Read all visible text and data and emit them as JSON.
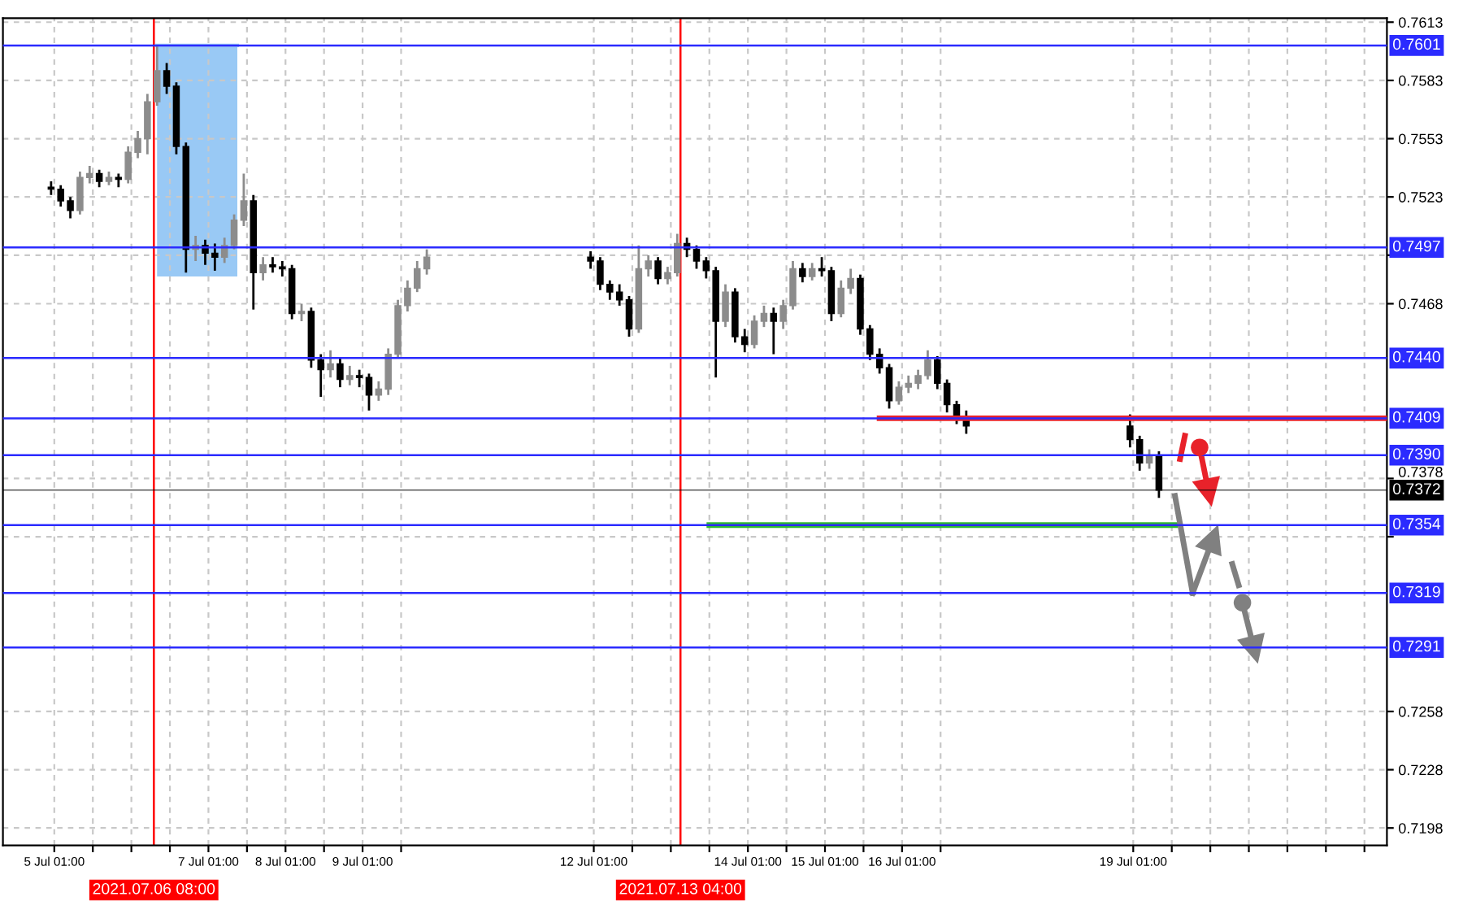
{
  "chart_data": {
    "type": "candlestick",
    "x": [
      "2021-07-05T00:00",
      "2021-07-05T03:00",
      "2021-07-05T06:00",
      "2021-07-05T09:00",
      "2021-07-05T12:00",
      "2021-07-05T15:00",
      "2021-07-05T18:00",
      "2021-07-05T21:00",
      "2021-07-06T00:00",
      "2021-07-06T03:00",
      "2021-07-06T06:00",
      "2021-07-06T09:00",
      "2021-07-06T12:00",
      "2021-07-06T15:00",
      "2021-07-06T18:00",
      "2021-07-06T21:00",
      "2021-07-07T00:00",
      "2021-07-07T03:00",
      "2021-07-07T06:00",
      "2021-07-07T09:00",
      "2021-07-07T12:00",
      "2021-07-07T15:00",
      "2021-07-07T18:00",
      "2021-07-07T21:00",
      "2021-07-08T00:00",
      "2021-07-08T03:00",
      "2021-07-08T06:00",
      "2021-07-08T09:00",
      "2021-07-08T12:00",
      "2021-07-08T15:00",
      "2021-07-08T18:00",
      "2021-07-08T21:00",
      "2021-07-09T00:00",
      "2021-07-09T03:00",
      "2021-07-09T06:00",
      "2021-07-09T09:00",
      "2021-07-09T12:00",
      "2021-07-09T15:00",
      "2021-07-09T18:00",
      "2021-07-09T21:00",
      "2021-07-12T00:00",
      "2021-07-12T03:00",
      "2021-07-12T06:00",
      "2021-07-12T09:00",
      "2021-07-12T12:00",
      "2021-07-12T15:00",
      "2021-07-12T18:00",
      "2021-07-12T21:00",
      "2021-07-13T00:00",
      "2021-07-13T03:00",
      "2021-07-13T06:00",
      "2021-07-13T09:00",
      "2021-07-13T12:00",
      "2021-07-13T15:00",
      "2021-07-13T18:00",
      "2021-07-13T21:00",
      "2021-07-14T00:00",
      "2021-07-14T03:00",
      "2021-07-14T06:00",
      "2021-07-14T09:00",
      "2021-07-14T12:00",
      "2021-07-14T15:00",
      "2021-07-14T18:00",
      "2021-07-14T21:00",
      "2021-07-15T00:00",
      "2021-07-15T03:00",
      "2021-07-15T06:00",
      "2021-07-15T09:00",
      "2021-07-15T12:00",
      "2021-07-15T15:00",
      "2021-07-15T18:00",
      "2021-07-15T21:00",
      "2021-07-16T00:00",
      "2021-07-16T03:00",
      "2021-07-16T06:00",
      "2021-07-16T09:00",
      "2021-07-16T12:00",
      "2021-07-16T15:00",
      "2021-07-16T18:00",
      "2021-07-16T21:00",
      "2021-07-19T00:00",
      "2021-07-19T03:00",
      "2021-07-19T06:00",
      "2021-07-19T09:00"
    ],
    "ohlc": [
      [
        0.7528,
        0.7531,
        0.7524,
        0.7527
      ],
      [
        0.7527,
        0.7529,
        0.7518,
        0.7521
      ],
      [
        0.7521,
        0.7523,
        0.7512,
        0.7516
      ],
      [
        0.7516,
        0.7536,
        0.7514,
        0.7533
      ],
      [
        0.7533,
        0.7539,
        0.753,
        0.7535
      ],
      [
        0.7535,
        0.7537,
        0.7528,
        0.7531
      ],
      [
        0.7531,
        0.7536,
        0.7529,
        0.7533
      ],
      [
        0.7533,
        0.7535,
        0.7528,
        0.7532
      ],
      [
        0.7532,
        0.7549,
        0.753,
        0.7546
      ],
      [
        0.7546,
        0.7557,
        0.7543,
        0.7553
      ],
      [
        0.7553,
        0.7576,
        0.7545,
        0.7572
      ],
      [
        0.7572,
        0.7601,
        0.757,
        0.7588
      ],
      [
        0.7588,
        0.7592,
        0.7576,
        0.758
      ],
      [
        0.758,
        0.7582,
        0.7545,
        0.7549
      ],
      [
        0.7549,
        0.7551,
        0.7484,
        0.7496
      ],
      [
        0.7496,
        0.7503,
        0.749,
        0.7498
      ],
      [
        0.7498,
        0.7501,
        0.7488,
        0.7494
      ],
      [
        0.7494,
        0.7499,
        0.7485,
        0.7492
      ],
      [
        0.7492,
        0.7502,
        0.7489,
        0.7498
      ],
      [
        0.7498,
        0.7514,
        0.7496,
        0.7511
      ],
      [
        0.7511,
        0.7535,
        0.7508,
        0.7521
      ],
      [
        0.7521,
        0.7524,
        0.7465,
        0.7484
      ],
      [
        0.7484,
        0.7492,
        0.748,
        0.7488
      ],
      [
        0.7488,
        0.7492,
        0.7484,
        0.7487
      ],
      [
        0.7487,
        0.749,
        0.7482,
        0.7486
      ],
      [
        0.7486,
        0.7488,
        0.746,
        0.7463
      ],
      [
        0.7463,
        0.7468,
        0.7459,
        0.7464
      ],
      [
        0.7464,
        0.7466,
        0.7435,
        0.7439
      ],
      [
        0.7439,
        0.7442,
        0.742,
        0.7434
      ],
      [
        0.7434,
        0.7444,
        0.743,
        0.7437
      ],
      [
        0.7437,
        0.744,
        0.7425,
        0.7429
      ],
      [
        0.7429,
        0.7436,
        0.7426,
        0.7431
      ],
      [
        0.7431,
        0.7434,
        0.7425,
        0.743
      ],
      [
        0.743,
        0.7432,
        0.7413,
        0.7421
      ],
      [
        0.7421,
        0.7428,
        0.7418,
        0.7424
      ],
      [
        0.7424,
        0.7445,
        0.7421,
        0.7442
      ],
      [
        0.7442,
        0.747,
        0.744,
        0.7467
      ],
      [
        0.7467,
        0.748,
        0.7464,
        0.7476
      ],
      [
        0.7476,
        0.749,
        0.7474,
        0.7486
      ],
      [
        0.7486,
        0.7496,
        0.7483,
        0.7492
      ],
      [
        0.7492,
        0.7495,
        0.7486,
        0.749
      ],
      [
        0.749,
        0.7492,
        0.7475,
        0.7478
      ],
      [
        0.7478,
        0.748,
        0.747,
        0.7474
      ],
      [
        0.7474,
        0.7478,
        0.7467,
        0.747
      ],
      [
        0.747,
        0.7472,
        0.7451,
        0.7455
      ],
      [
        0.7455,
        0.7498,
        0.7453,
        0.7486
      ],
      [
        0.7486,
        0.7493,
        0.7482,
        0.749
      ],
      [
        0.749,
        0.7492,
        0.7478,
        0.7481
      ],
      [
        0.7481,
        0.7487,
        0.7478,
        0.7484
      ],
      [
        0.7484,
        0.7504,
        0.7482,
        0.7499
      ],
      [
        0.7499,
        0.7502,
        0.7492,
        0.7496
      ],
      [
        0.7496,
        0.7498,
        0.7486,
        0.749
      ],
      [
        0.749,
        0.7492,
        0.7481,
        0.7485
      ],
      [
        0.7485,
        0.7487,
        0.743,
        0.7459
      ],
      [
        0.7459,
        0.7478,
        0.7456,
        0.7474
      ],
      [
        0.7474,
        0.7476,
        0.7448,
        0.7451
      ],
      [
        0.7451,
        0.7455,
        0.7443,
        0.7447
      ],
      [
        0.7447,
        0.7462,
        0.7445,
        0.7459
      ],
      [
        0.7459,
        0.7467,
        0.7456,
        0.7463
      ],
      [
        0.7463,
        0.7466,
        0.7442,
        0.7459
      ],
      [
        0.7459,
        0.747,
        0.7455,
        0.7467
      ],
      [
        0.7467,
        0.749,
        0.7465,
        0.7486
      ],
      [
        0.7486,
        0.7489,
        0.7479,
        0.7482
      ],
      [
        0.7482,
        0.7489,
        0.748,
        0.7486
      ],
      [
        0.7486,
        0.7492,
        0.7482,
        0.7485
      ],
      [
        0.7485,
        0.7487,
        0.7459,
        0.7463
      ],
      [
        0.7463,
        0.748,
        0.7461,
        0.7476
      ],
      [
        0.7476,
        0.7486,
        0.7473,
        0.7481
      ],
      [
        0.7481,
        0.7483,
        0.7452,
        0.7455
      ],
      [
        0.7455,
        0.7457,
        0.7439,
        0.7442
      ],
      [
        0.7442,
        0.7445,
        0.7432,
        0.7435
      ],
      [
        0.7435,
        0.7437,
        0.7414,
        0.7418
      ],
      [
        0.7418,
        0.7428,
        0.7416,
        0.7425
      ],
      [
        0.7425,
        0.7431,
        0.7422,
        0.7427
      ],
      [
        0.7427,
        0.7434,
        0.7424,
        0.7431
      ],
      [
        0.7431,
        0.7444,
        0.7429,
        0.7439
      ],
      [
        0.7439,
        0.7441,
        0.7424,
        0.7427
      ],
      [
        0.7427,
        0.7429,
        0.7412,
        0.7416
      ],
      [
        0.7416,
        0.7418,
        0.7406,
        0.741
      ],
      [
        0.741,
        0.7413,
        0.7401,
        0.7405
      ],
      [
        0.7405,
        0.7411,
        0.7394,
        0.7398
      ],
      [
        0.7398,
        0.74,
        0.7382,
        0.7386
      ],
      [
        0.7386,
        0.7393,
        0.7383,
        0.739
      ],
      [
        0.739,
        0.7392,
        0.7368,
        0.7372
      ]
    ],
    "series": [
      {
        "type": "line",
        "color": "#99c9f5",
        "x": [
          "2021-07-06T09:00",
          "2021-07-07T10:00"
        ],
        "values": [
          0.7601,
          0.7601
        ],
        "lower": [
          0.7482,
          0.7482
        ],
        "upper": [
          0.7601,
          0.7601
        ]
      },
      {
        "type": "line",
        "color": "#e8222a",
        "x": [
          "2021-07-15T18:00",
          "2021-07-22T08:00"
        ],
        "values": [
          0.7409,
          0.7409
        ]
      },
      {
        "type": "line",
        "color": "#2eb82e",
        "x": [
          "2021-07-13T13:00",
          "2021-07-19T14:00"
        ],
        "values": [
          0.7354,
          0.7354
        ]
      },
      {
        "type": "line",
        "color": "#808080",
        "x": [
          "2021-07-19T14:00",
          "2021-07-19T19:30"
        ],
        "values": [
          0.7369,
          0.7319
        ]
      },
      {
        "type": "line",
        "color": "#808080",
        "marker": "triangle",
        "x": [
          "2021-07-19T19:30",
          "2021-07-20T01:50"
        ],
        "values": [
          0.7319,
          0.7347
        ]
      },
      {
        "type": "line",
        "color": "#808080",
        "x": [
          "2021-07-20T07:50",
          "2021-07-20T09:50"
        ],
        "values": [
          0.7334,
          0.7323
        ]
      },
      {
        "type": "scatter",
        "color": "#808080",
        "marker": "circle",
        "x": [
          "2021-07-20T11:00"
        ],
        "values": [
          0.7314
        ]
      },
      {
        "type": "line",
        "color": "#808080",
        "marker": "triangle",
        "x": [
          "2021-07-20T11:00",
          "2021-07-20T14:40"
        ],
        "values": [
          0.7314,
          0.729
        ]
      },
      {
        "type": "line",
        "color": "#e8222a",
        "x": [
          "2021-07-19T15:35",
          "2021-07-19T17:05"
        ],
        "values": [
          0.7388,
          0.74
        ]
      },
      {
        "type": "scatter",
        "color": "#e8222a",
        "marker": "circle",
        "x": [
          "2021-07-19T21:40"
        ],
        "values": [
          0.7394
        ]
      },
      {
        "type": "line",
        "color": "#e8222a",
        "marker": "triangle",
        "x": [
          "2021-07-19T21:40",
          "2021-07-20T00:30"
        ],
        "values": [
          0.7394,
          0.7371
        ]
      }
    ],
    "ref_lines": [
      {
        "axis": "y",
        "value": 0.7601,
        "label": "0.7601",
        "color": "#2b2bff"
      },
      {
        "axis": "y",
        "value": 0.7497,
        "label": "0.7497",
        "color": "#2b2bff"
      },
      {
        "axis": "y",
        "value": 0.744,
        "label": "0.7440",
        "color": "#2b2bff"
      },
      {
        "axis": "y",
        "value": 0.7409,
        "label": "0.7409",
        "color": "#2b2bff"
      },
      {
        "axis": "y",
        "value": 0.739,
        "label": "0.7390",
        "color": "#2b2bff"
      },
      {
        "axis": "y",
        "value": 0.7372,
        "label": "0.7372",
        "color": "#000000"
      },
      {
        "axis": "y",
        "value": 0.7354,
        "label": "0.7354",
        "color": "#2b2bff"
      },
      {
        "axis": "y",
        "value": 0.7319,
        "label": "0.7319",
        "color": "#2b2bff"
      },
      {
        "axis": "y",
        "value": 0.7291,
        "label": "0.7291",
        "color": "#2b2bff"
      },
      {
        "axis": "x",
        "value": "2021-07-06T08:00",
        "label": "2021.07.06 08:00",
        "color": "#ff0000"
      },
      {
        "axis": "x",
        "value": "2021-07-13T04:00",
        "label": "2021.07.13 04:00",
        "color": "#ff0000"
      }
    ],
    "xlim": [
      "2021-07-04T09:00",
      "2021-07-22T08:00"
    ],
    "xticks": [
      {
        "value": "2021-07-05T01:00",
        "label": "5 Jul 01:00"
      },
      {
        "value": "2021-07-05T13:00",
        "label": null
      },
      {
        "value": "2021-07-06T01:00",
        "label": null
      },
      {
        "value": "2021-07-06T13:00",
        "label": null
      },
      {
        "value": "2021-07-07T01:00",
        "label": "7 Jul 01:00"
      },
      {
        "value": "2021-07-07T13:00",
        "label": null
      },
      {
        "value": "2021-07-08T01:00",
        "label": "8 Jul 01:00"
      },
      {
        "value": "2021-07-08T13:00",
        "label": null
      },
      {
        "value": "2021-07-09T01:00",
        "label": "9 Jul 01:00"
      },
      {
        "value": "2021-07-09T13:00",
        "label": null
      },
      {
        "value": "2021-07-12T01:00",
        "label": "12 Jul 01:00"
      },
      {
        "value": "2021-07-12T13:00",
        "label": null
      },
      {
        "value": "2021-07-13T01:00",
        "label": null
      },
      {
        "value": "2021-07-13T13:00",
        "label": null
      },
      {
        "value": "2021-07-14T01:00",
        "label": "14 Jul 01:00"
      },
      {
        "value": "2021-07-14T13:00",
        "label": null
      },
      {
        "value": "2021-07-15T01:00",
        "label": "15 Jul 01:00"
      },
      {
        "value": "2021-07-15T13:00",
        "label": null
      },
      {
        "value": "2021-07-16T01:00",
        "label": "16 Jul 01:00"
      },
      {
        "value": "2021-07-16T13:00",
        "label": null
      },
      {
        "value": "2021-07-19T01:00",
        "label": "19 Jul 01:00"
      },
      {
        "value": "2021-07-19T13:00",
        "label": null
      },
      {
        "value": "2021-07-20T01:00",
        "label": null
      },
      {
        "value": "2021-07-20T13:00",
        "label": null
      },
      {
        "value": "2021-07-21T01:00",
        "label": null
      },
      {
        "value": "2021-07-21T13:00",
        "label": null
      },
      {
        "value": "2021-07-22T01:00",
        "label": null
      }
    ],
    "ylim": [
      0.7189,
      0.7615
    ],
    "yticks": [
      0.7613,
      0.7583,
      0.7553,
      0.7523,
      {
        "value": 0.7493,
        "label": null
      },
      0.7468,
      0.7378,
      {
        "value": 0.7348,
        "label": null
      },
      0.7258,
      0.7228,
      0.7198
    ],
    "grid": true,
    "legend": false
  }
}
